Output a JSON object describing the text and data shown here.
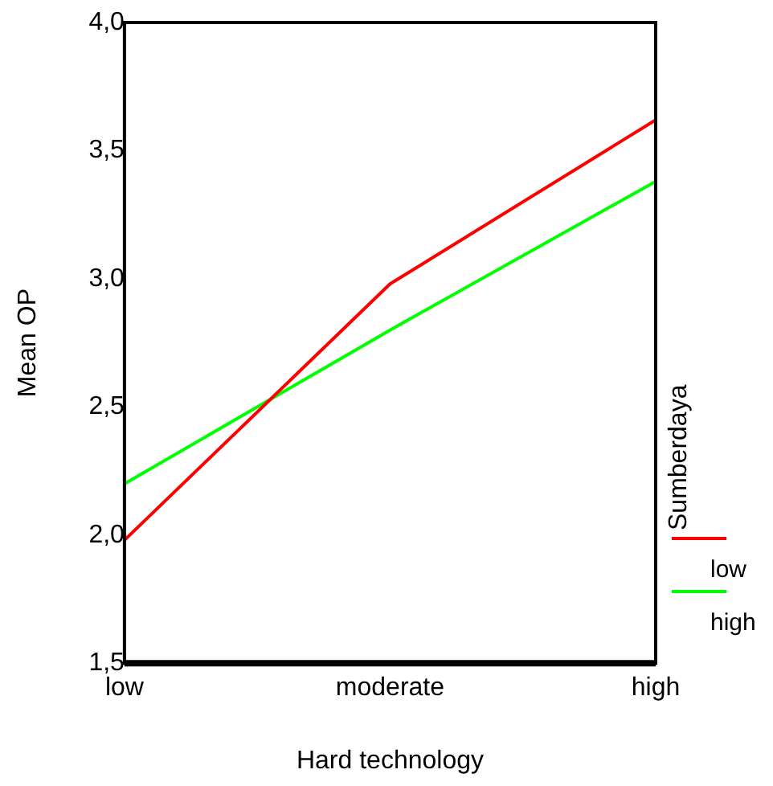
{
  "chart_data": {
    "type": "line",
    "xlabel": "Hard technology",
    "ylabel": "Mean OP",
    "legend_title": "Sumberdaya",
    "categories": [
      "low",
      "moderate",
      "high"
    ],
    "series": [
      {
        "name": "low",
        "color": "#ff0000",
        "values": [
          1.98,
          2.98,
          3.62
        ]
      },
      {
        "name": "high",
        "color": "#00ff00",
        "values": [
          2.2,
          2.8,
          3.38
        ]
      }
    ],
    "ylim": [
      1.5,
      4
    ],
    "yticks": [
      {
        "value": 1.5,
        "label": "1,5"
      },
      {
        "value": 2,
        "label": "2,0"
      },
      {
        "value": 2.5,
        "label": "2,5"
      },
      {
        "value": 3,
        "label": "3,0"
      },
      {
        "value": 3.5,
        "label": "3,5"
      },
      {
        "value": 4,
        "label": "4,0"
      }
    ],
    "grid": false,
    "legend": "right",
    "marker": "none",
    "line_style": "solid"
  }
}
